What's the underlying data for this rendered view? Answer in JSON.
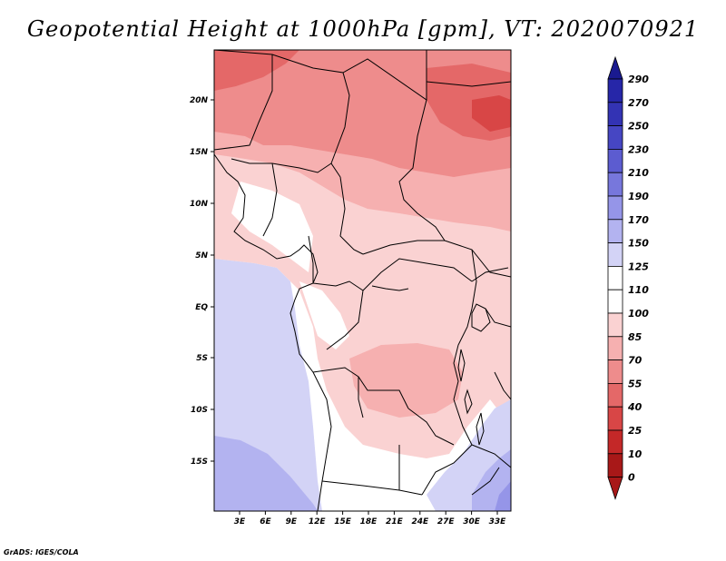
{
  "title": "Geopotential Height at 1000hPa [gpm], VT: 2020070921",
  "credit": "GrADS: IGES/COLA",
  "map": {
    "lat_labels": [
      "20N",
      "15N",
      "10N",
      "5N",
      "EQ",
      "5S",
      "10S",
      "15S"
    ],
    "lon_labels": [
      "3E",
      "6E",
      "9E",
      "12E",
      "15E",
      "18E",
      "21E",
      "24E",
      "27E",
      "30E",
      "33E"
    ]
  },
  "colorbar": {
    "levels": [
      "290",
      "270",
      "250",
      "230",
      "210",
      "190",
      "170",
      "150",
      "125",
      "110",
      "100",
      "85",
      "70",
      "55",
      "40",
      "25",
      "10",
      "0"
    ],
    "colors": [
      "#1a1a90",
      "#2626a8",
      "#3333b4",
      "#4646c3",
      "#5c5cd0",
      "#7777dc",
      "#9595e8",
      "#b3b3f0",
      "#d3d3f6",
      "#ffffff",
      "#ffffff",
      "#fad2d2",
      "#f6b0b0",
      "#ee8c8c",
      "#e46868",
      "#d84646",
      "#c42828",
      "#a81818",
      "#8c0c0c"
    ],
    "arrow_top_color": "#1a1a90",
    "arrow_bottom_color": "#a81818"
  }
}
